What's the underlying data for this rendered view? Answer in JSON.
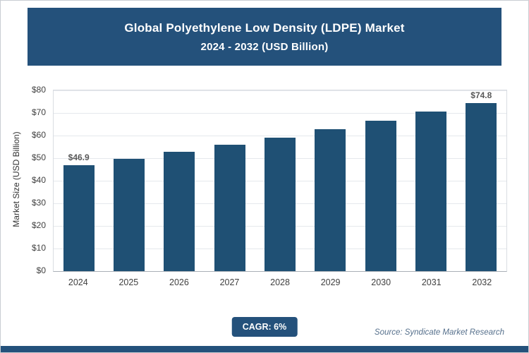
{
  "header": {
    "title_line1": "Global Polyethylene Low Density (LDPE) Market",
    "title_line2": "2024 - 2032 (USD Billion)"
  },
  "colors": {
    "primary": "#24517B",
    "bar": "#1F5074",
    "grid": "#e5e8ec"
  },
  "chart_data": {
    "type": "bar",
    "title": "Global Polyethylene Low Density (LDPE) Market 2024 - 2032 (USD Billion)",
    "categories": [
      "2024",
      "2025",
      "2026",
      "2027",
      "2028",
      "2029",
      "2030",
      "2031",
      "2032"
    ],
    "values": [
      46.9,
      49.7,
      52.7,
      55.9,
      59.2,
      62.8,
      66.5,
      70.5,
      74.8
    ],
    "point_labels": [
      "$46.9",
      "",
      "",
      "",
      "",
      "",
      "",
      "",
      "$74.8"
    ],
    "xlabel": "",
    "ylabel": "Market Size (USD Billion)",
    "ylim": [
      0,
      80
    ],
    "ytick_step": 10,
    "ytick_labels": [
      "$0",
      "$10",
      "$20",
      "$30",
      "$40",
      "$50",
      "$60",
      "$70",
      "$80"
    ],
    "grid": true,
    "legend": false
  },
  "footer": {
    "cagr_label": "CAGR: 6%",
    "source": "Source: Syndicate Market Research"
  }
}
